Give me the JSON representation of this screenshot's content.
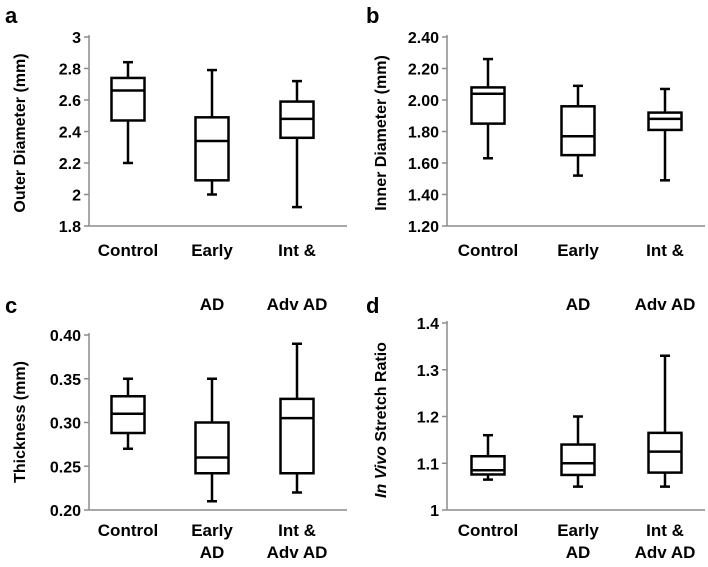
{
  "chart_data": [
    {
      "type": "boxplot",
      "panel_label": "a",
      "ylabel": "Outer Diameter (mm)",
      "ylim": [
        1.8,
        3.0
      ],
      "yticks": [
        "1.8",
        "2",
        "2.2",
        "2.4",
        "2.6",
        "2.8",
        "3"
      ],
      "tick_values": [
        1.8,
        2.0,
        2.2,
        2.4,
        2.6,
        2.8,
        3.0
      ],
      "categories": [
        "Control",
        "Early",
        "Int &"
      ],
      "boxes": [
        {
          "min": 2.2,
          "q1": 2.47,
          "median": 2.66,
          "q3": 2.74,
          "max": 2.84
        },
        {
          "min": 2.0,
          "q1": 2.09,
          "median": 2.34,
          "q3": 2.49,
          "max": 2.79
        },
        {
          "min": 1.92,
          "q1": 2.36,
          "median": 2.48,
          "q3": 2.59,
          "max": 2.72
        }
      ]
    },
    {
      "type": "boxplot",
      "panel_label": "b",
      "ylabel": "Inner Diameter (mm)",
      "ylim": [
        1.2,
        2.4
      ],
      "yticks": [
        "1.20",
        "1.40",
        "1.60",
        "1.80",
        "2.00",
        "2.20",
        "2.40"
      ],
      "tick_values": [
        1.2,
        1.4,
        1.6,
        1.8,
        2.0,
        2.2,
        2.4
      ],
      "categories": [
        "Control",
        "Early",
        "Int &"
      ],
      "boxes": [
        {
          "min": 1.63,
          "q1": 1.85,
          "median": 2.04,
          "q3": 2.08,
          "max": 2.26
        },
        {
          "min": 1.52,
          "q1": 1.65,
          "median": 1.77,
          "q3": 1.96,
          "max": 2.09
        },
        {
          "min": 1.49,
          "q1": 1.81,
          "median": 1.88,
          "q3": 1.92,
          "max": 2.07
        }
      ]
    },
    {
      "type": "boxplot",
      "panel_label": "c",
      "ylabel": "Thickness (mm)",
      "ylim": [
        0.2,
        0.4
      ],
      "yticks": [
        "0.20",
        "0.25",
        "0.30",
        "0.35",
        "0.40"
      ],
      "tick_values": [
        0.2,
        0.25,
        0.3,
        0.35,
        0.4
      ],
      "categories": [
        "Control",
        "Early",
        "Int &"
      ],
      "categories_line2": [
        "",
        "AD",
        "Adv AD"
      ],
      "top_labels": [
        "",
        "AD",
        "Adv AD"
      ],
      "boxes": [
        {
          "min": 0.27,
          "q1": 0.288,
          "median": 0.31,
          "q3": 0.33,
          "max": 0.35
        },
        {
          "min": 0.21,
          "q1": 0.242,
          "median": 0.26,
          "q3": 0.3,
          "max": 0.35
        },
        {
          "min": 0.22,
          "q1": 0.242,
          "median": 0.305,
          "q3": 0.327,
          "max": 0.39
        }
      ]
    },
    {
      "type": "boxplot",
      "panel_label": "d",
      "ylabel_italic": "In Vivo",
      "ylabel": " Stretch Ratio",
      "ylim": [
        1.0,
        1.4
      ],
      "yticks": [
        "1",
        "1.1",
        "1.2",
        "1.3",
        "1.4"
      ],
      "tick_values": [
        1.0,
        1.1,
        1.2,
        1.3,
        1.4
      ],
      "categories": [
        "Control",
        "Early",
        "Int &"
      ],
      "categories_line2": [
        "",
        "AD",
        "Adv AD"
      ],
      "top_labels": [
        "",
        "AD",
        "Adv AD"
      ],
      "boxes": [
        {
          "min": 1.065,
          "q1": 1.076,
          "median": 1.085,
          "q3": 1.115,
          "max": 1.16
        },
        {
          "min": 1.05,
          "q1": 1.075,
          "median": 1.1,
          "q3": 1.14,
          "max": 1.2
        },
        {
          "min": 1.05,
          "q1": 1.08,
          "median": 1.125,
          "q3": 1.165,
          "max": 1.33
        }
      ]
    }
  ]
}
